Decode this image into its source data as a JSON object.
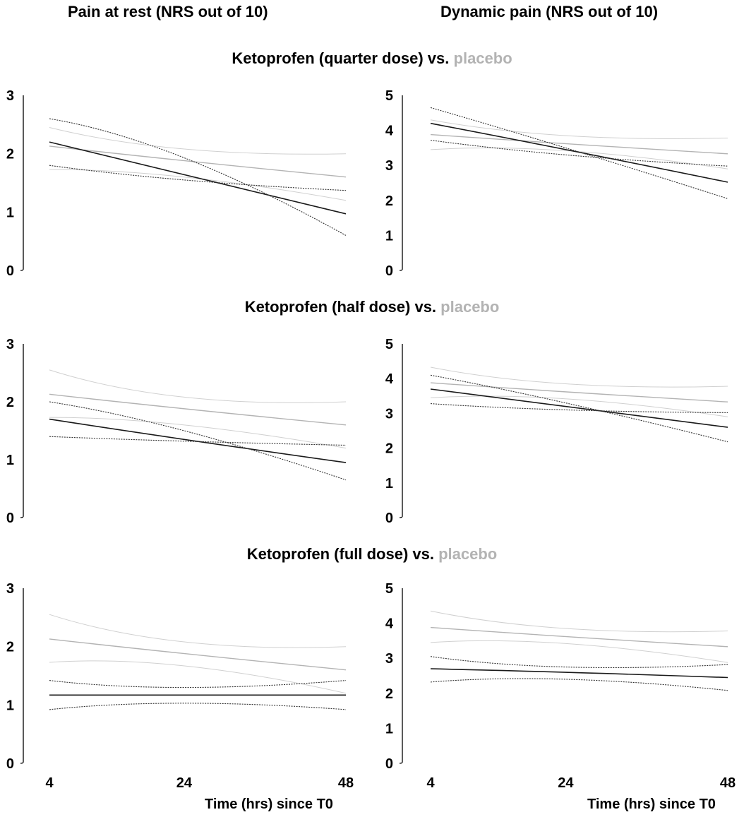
{
  "headers": {
    "left": "Pain at rest (NRS out of 10)",
    "right": "Dynamic pain (NRS out of 10)"
  },
  "rows": [
    {
      "title_main": "Ketoprofen (quarter dose) vs.",
      "title_placebo": "placebo"
    },
    {
      "title_main": "Ketoprofen (half dose) vs.",
      "title_placebo": "placebo"
    },
    {
      "title_main": "Ketoprofen (full dose) vs.",
      "title_placebo": "placebo"
    }
  ],
  "x_axis_title": "Time (hrs) since T0",
  "colors": {
    "ketoprofen": "#1a1a1a",
    "placebo": "#b3b3b3"
  },
  "chart_data": [
    {
      "type": "line",
      "row": 0,
      "col": 0,
      "panel": "rest-quarter",
      "x": [
        4,
        24,
        48
      ],
      "xlim": [
        4,
        48
      ],
      "ylim": [
        0,
        3
      ],
      "yticks": [
        0,
        1,
        2,
        3
      ],
      "xticks": [],
      "series": [
        {
          "role": "ketoprofen",
          "style": "mean",
          "values": [
            2.2,
            1.64,
            0.97
          ]
        },
        {
          "role": "ketoprofen",
          "style": "ci",
          "values": [
            2.6,
            1.93,
            0.6
          ]
        },
        {
          "role": "ketoprofen",
          "style": "ci",
          "values": [
            1.8,
            1.55,
            1.37
          ]
        },
        {
          "role": "placebo",
          "style": "mean",
          "values": [
            2.13,
            1.88,
            1.6
          ]
        },
        {
          "role": "placebo",
          "style": "ci",
          "values": [
            2.45,
            2.08,
            2.0
          ]
        },
        {
          "role": "placebo",
          "style": "ci",
          "values": [
            1.73,
            1.6,
            1.2
          ]
        }
      ]
    },
    {
      "type": "line",
      "row": 0,
      "col": 1,
      "panel": "dynamic-quarter",
      "x": [
        4,
        24,
        48
      ],
      "xlim": [
        4,
        48
      ],
      "ylim": [
        0,
        5
      ],
      "yticks": [
        0,
        1,
        2,
        3,
        4,
        5
      ],
      "xticks": [],
      "series": [
        {
          "role": "ketoprofen",
          "style": "mean",
          "values": [
            4.2,
            3.45,
            2.52
          ]
        },
        {
          "role": "ketoprofen",
          "style": "ci",
          "values": [
            4.65,
            3.5,
            2.05
          ]
        },
        {
          "role": "ketoprofen",
          "style": "ci",
          "values": [
            3.72,
            3.3,
            2.98
          ]
        },
        {
          "role": "placebo",
          "style": "mean",
          "values": [
            3.88,
            3.62,
            3.33
          ]
        },
        {
          "role": "placebo",
          "style": "ci",
          "values": [
            4.3,
            3.85,
            3.78
          ]
        },
        {
          "role": "placebo",
          "style": "ci",
          "values": [
            3.45,
            3.42,
            2.9
          ]
        }
      ]
    },
    {
      "type": "line",
      "row": 1,
      "col": 0,
      "panel": "rest-half",
      "x": [
        4,
        24,
        48
      ],
      "xlim": [
        4,
        48
      ],
      "ylim": [
        0,
        3
      ],
      "yticks": [
        0,
        1,
        2,
        3
      ],
      "xticks": [],
      "series": [
        {
          "role": "ketoprofen",
          "style": "mean",
          "values": [
            1.7,
            1.35,
            0.95
          ]
        },
        {
          "role": "ketoprofen",
          "style": "ci",
          "values": [
            2.0,
            1.5,
            0.65
          ]
        },
        {
          "role": "ketoprofen",
          "style": "ci",
          "values": [
            1.4,
            1.32,
            1.25
          ]
        },
        {
          "role": "placebo",
          "style": "mean",
          "values": [
            2.13,
            1.88,
            1.6
          ]
        },
        {
          "role": "placebo",
          "style": "ci",
          "values": [
            2.55,
            2.08,
            2.0
          ]
        },
        {
          "role": "placebo",
          "style": "ci",
          "values": [
            1.73,
            1.6,
            1.2
          ]
        }
      ]
    },
    {
      "type": "line",
      "row": 1,
      "col": 1,
      "panel": "dynamic-half",
      "x": [
        4,
        24,
        48
      ],
      "xlim": [
        4,
        48
      ],
      "ylim": [
        0,
        5
      ],
      "yticks": [
        0,
        1,
        2,
        3,
        4,
        5
      ],
      "xticks": [],
      "series": [
        {
          "role": "ketoprofen",
          "style": "mean",
          "values": [
            3.7,
            3.2,
            2.6
          ]
        },
        {
          "role": "ketoprofen",
          "style": "ci",
          "values": [
            4.1,
            3.3,
            2.18
          ]
        },
        {
          "role": "ketoprofen",
          "style": "ci",
          "values": [
            3.28,
            3.1,
            3.02
          ]
        },
        {
          "role": "placebo",
          "style": "mean",
          "values": [
            3.88,
            3.62,
            3.33
          ]
        },
        {
          "role": "placebo",
          "style": "ci",
          "values": [
            4.33,
            3.85,
            3.78
          ]
        },
        {
          "role": "placebo",
          "style": "ci",
          "values": [
            3.45,
            3.42,
            2.9
          ]
        }
      ]
    },
    {
      "type": "line",
      "row": 2,
      "col": 0,
      "panel": "rest-full",
      "x": [
        4,
        24,
        48
      ],
      "xlim": [
        4,
        48
      ],
      "ylim": [
        0,
        3
      ],
      "yticks": [
        0,
        1,
        2,
        3
      ],
      "xticks": [
        4,
        24,
        48
      ],
      "series": [
        {
          "role": "ketoprofen",
          "style": "mean",
          "values": [
            1.17,
            1.17,
            1.17
          ]
        },
        {
          "role": "ketoprofen",
          "style": "ci",
          "values": [
            1.42,
            1.3,
            1.42
          ]
        },
        {
          "role": "ketoprofen",
          "style": "ci",
          "values": [
            0.92,
            1.03,
            0.92
          ]
        },
        {
          "role": "placebo",
          "style": "mean",
          "values": [
            2.13,
            1.88,
            1.6
          ]
        },
        {
          "role": "placebo",
          "style": "ci",
          "values": [
            2.55,
            2.08,
            2.0
          ]
        },
        {
          "role": "placebo",
          "style": "ci",
          "values": [
            1.73,
            1.67,
            1.2
          ]
        }
      ]
    },
    {
      "type": "line",
      "row": 2,
      "col": 1,
      "panel": "dynamic-full",
      "x": [
        4,
        24,
        48
      ],
      "xlim": [
        4,
        48
      ],
      "ylim": [
        0,
        5
      ],
      "yticks": [
        0,
        1,
        2,
        3,
        4,
        5
      ],
      "xticks": [
        4,
        24,
        48
      ],
      "series": [
        {
          "role": "ketoprofen",
          "style": "mean",
          "values": [
            2.7,
            2.6,
            2.45
          ]
        },
        {
          "role": "ketoprofen",
          "style": "ci",
          "values": [
            3.05,
            2.75,
            2.82
          ]
        },
        {
          "role": "ketoprofen",
          "style": "ci",
          "values": [
            2.32,
            2.4,
            2.08
          ]
        },
        {
          "role": "placebo",
          "style": "mean",
          "values": [
            3.88,
            3.62,
            3.33
          ]
        },
        {
          "role": "placebo",
          "style": "ci",
          "values": [
            4.35,
            3.85,
            3.78
          ]
        },
        {
          "role": "placebo",
          "style": "ci",
          "values": [
            3.45,
            3.42,
            2.88
          ]
        }
      ]
    }
  ]
}
